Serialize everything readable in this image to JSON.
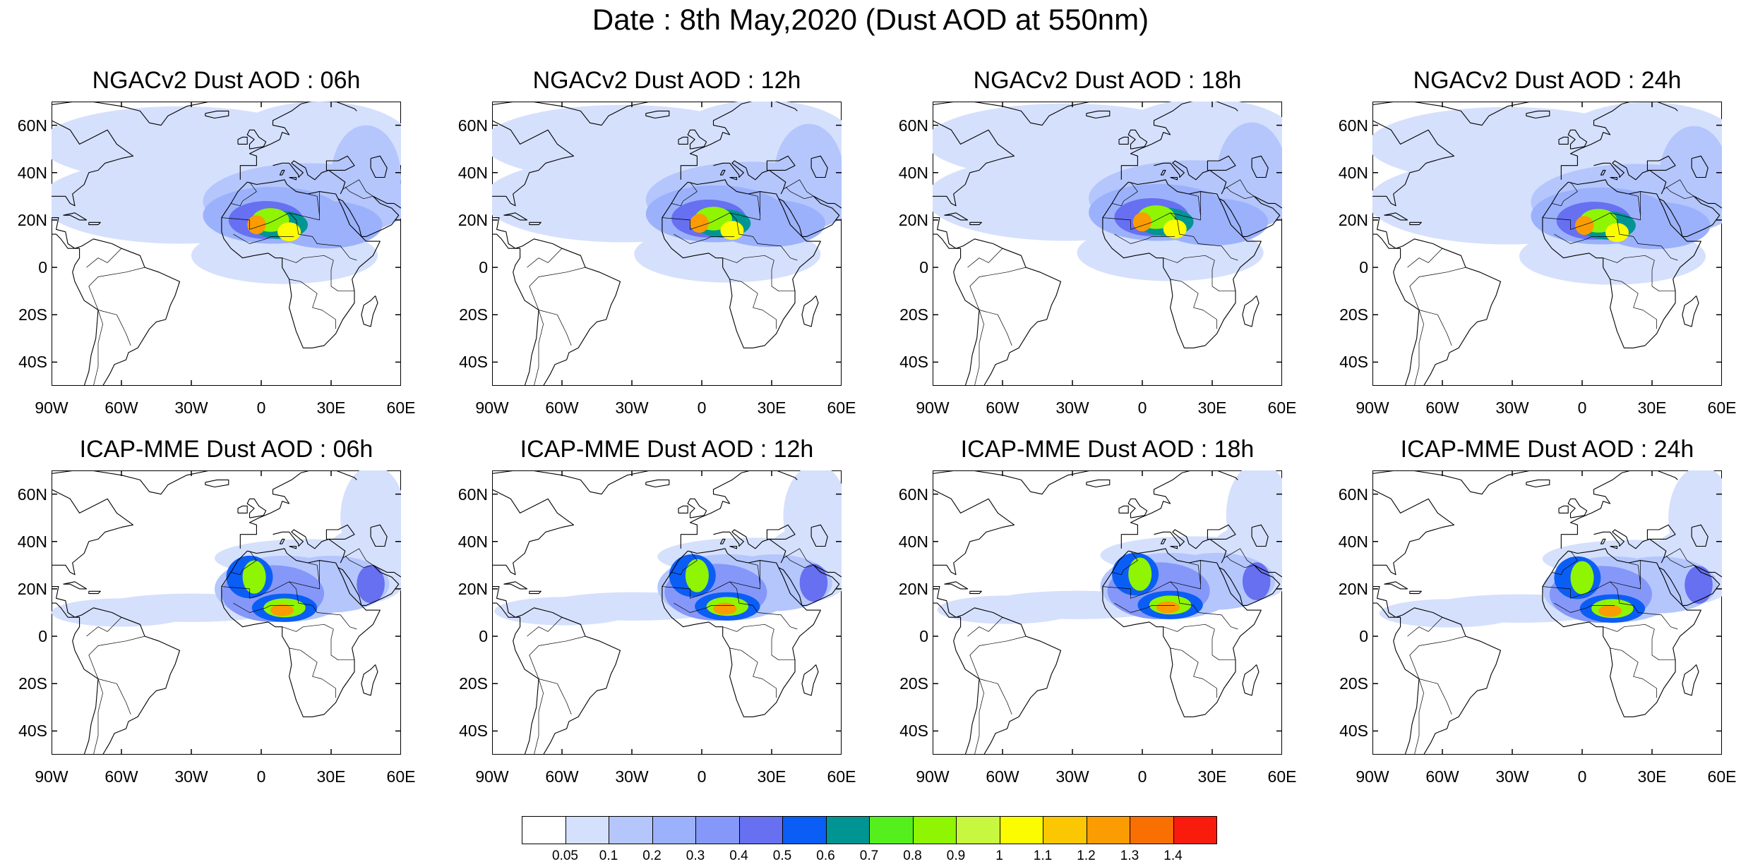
{
  "title": "Date : 8th May,2020 (Dust AOD at 550nm)",
  "panels": [
    {
      "title": "NGACv2 Dust AOD : 06h",
      "model": "NGACv2"
    },
    {
      "title": "NGACv2 Dust AOD : 12h",
      "model": "NGACv2"
    },
    {
      "title": "NGACv2 Dust AOD : 18h",
      "model": "NGACv2"
    },
    {
      "title": "NGACv2 Dust AOD : 24h",
      "model": "NGACv2"
    },
    {
      "title": "ICAP-MME Dust AOD : 06h",
      "model": "ICAP-MME"
    },
    {
      "title": "ICAP-MME Dust AOD : 12h",
      "model": "ICAP-MME"
    },
    {
      "title": "ICAP-MME Dust AOD : 18h",
      "model": "ICAP-MME"
    },
    {
      "title": "ICAP-MME Dust AOD : 24h",
      "model": "ICAP-MME"
    }
  ],
  "lat_labels": [
    "60N",
    "40N",
    "20N",
    "0",
    "20S",
    "40S"
  ],
  "lon_labels": [
    "90W",
    "60W",
    "30W",
    "0",
    "30E",
    "60E"
  ],
  "map_extent": {
    "lon": [
      -90,
      60
    ],
    "lat": [
      -50,
      70
    ]
  },
  "colorbar": {
    "labels": [
      "0.05",
      "0.1",
      "0.2",
      "0.3",
      "0.4",
      "0.5",
      "0.6",
      "0.7",
      "0.8",
      "0.9",
      "1",
      "1.1",
      "1.2",
      "1.3",
      "1.4"
    ],
    "colors": [
      "#ffffff",
      "#d5e0fd",
      "#b4c6fc",
      "#9bb1fb",
      "#8598f9",
      "#6670f1",
      "#0a5ef5",
      "#009593",
      "#54ef1c",
      "#8ff503",
      "#c7f73e",
      "#fcfc00",
      "#fbc602",
      "#fb9c02",
      "#fa6f02",
      "#f91c0c"
    ]
  }
}
